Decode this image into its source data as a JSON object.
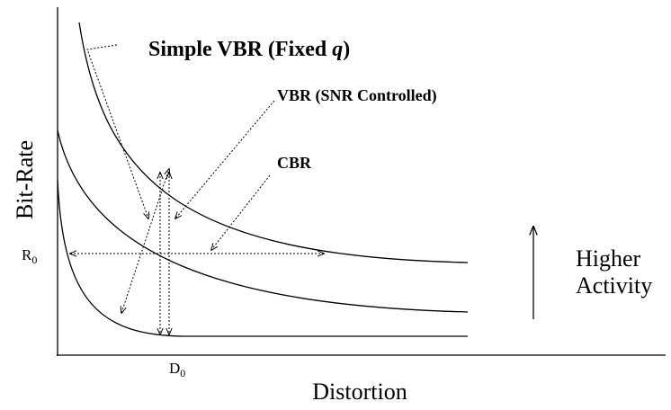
{
  "axes": {
    "y_label": "Bit-Rate",
    "x_label": "Distortion",
    "r0": {
      "base": "R",
      "sub": "0"
    },
    "d0": {
      "base": "D",
      "sub": "0"
    }
  },
  "labels": {
    "simple_vbr": [
      "Simple VBR (Fixed ",
      "q",
      ")"
    ],
    "vbr_snr": "VBR (SNR Controlled)",
    "cbr": "CBR",
    "activity": [
      "Higher",
      "Activity"
    ]
  }
}
